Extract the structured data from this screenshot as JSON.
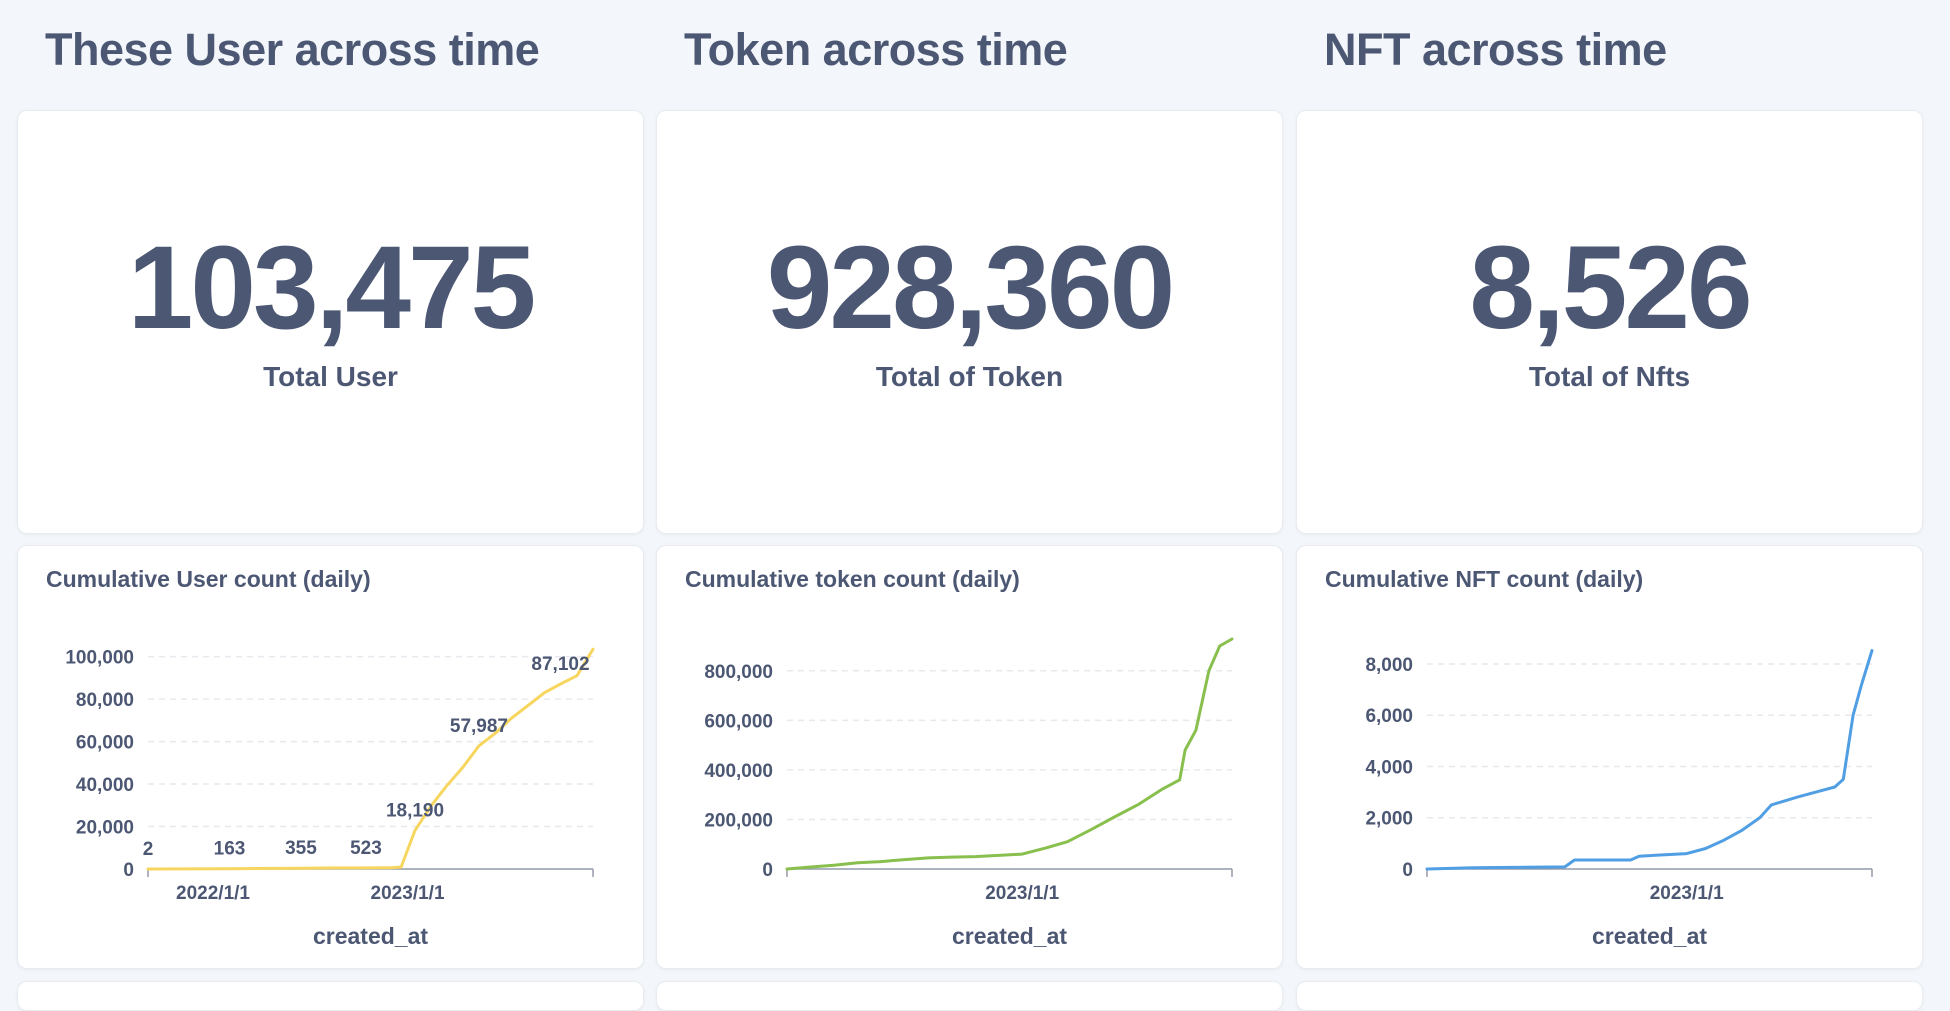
{
  "sections": [
    {
      "title": "These User across time"
    },
    {
      "title": "Token across time"
    },
    {
      "title": "NFT across time"
    }
  ],
  "scalars": [
    {
      "value": "103,475",
      "label": "Total User"
    },
    {
      "value": "928,360",
      "label": "Total of Token"
    },
    {
      "value": "8,526",
      "label": "Total of Nfts"
    }
  ],
  "colors": {
    "user": "#f7d660",
    "token": "#88bf4d",
    "nft": "#509ee3",
    "text": "#4c5773",
    "grid": "#e6e9ee",
    "axis": "#949aab"
  },
  "chart_data": [
    {
      "type": "line",
      "title": "Cumulative User count (daily)",
      "xlabel": "created_at",
      "ylabel": "",
      "color": "#f7d660",
      "x_range": [
        "2021-09-01",
        "2023-12-15"
      ],
      "ylim": [
        0,
        105000
      ],
      "y_ticks": [
        0,
        20000,
        40000,
        60000,
        80000,
        100000
      ],
      "y_tick_labels": [
        "0",
        "20,000",
        "40,000",
        "60,000",
        "80,000",
        "100,000"
      ],
      "x_ticks": [
        "2022-01-01",
        "2023-01-01"
      ],
      "x_tick_labels": [
        "2022/1/1",
        "2023/1/1"
      ],
      "series": [
        {
          "x": [
            "2021-09-01",
            "2021-11-15",
            "2022-02-01",
            "2022-06-15",
            "2022-08-15",
            "2022-10-15",
            "2022-12-01",
            "2022-12-20",
            "2023-01-15",
            "2023-02-15",
            "2023-03-15",
            "2023-04-15",
            "2023-05-15",
            "2023-06-15",
            "2023-07-15",
            "2023-08-15",
            "2023-09-15",
            "2023-10-15",
            "2023-11-15",
            "2023-12-15"
          ],
          "y": [
            2,
            50,
            163,
            355,
            500,
            523,
            600,
            900,
            18190,
            30000,
            39000,
            48000,
            57987,
            64000,
            71000,
            77000,
            83000,
            87102,
            91000,
            103475
          ]
        }
      ],
      "data_labels": [
        {
          "x": "2021-09-01",
          "y": 2,
          "text": "2"
        },
        {
          "x": "2022-02-01",
          "y": 163,
          "text": "163"
        },
        {
          "x": "2022-06-15",
          "y": 355,
          "text": "355"
        },
        {
          "x": "2022-10-15",
          "y": 523,
          "text": "523"
        },
        {
          "x": "2023-01-15",
          "y": 18190,
          "text": "18,190"
        },
        {
          "x": "2023-05-15",
          "y": 57987,
          "text": "57,987"
        },
        {
          "x": "2023-10-15",
          "y": 87102,
          "text": "87,102"
        }
      ],
      "grid": true
    },
    {
      "type": "line",
      "title": "Cumulative token count (daily)",
      "xlabel": "created_at",
      "ylabel": "",
      "color": "#88bf4d",
      "x_range": [
        "2022-03-01",
        "2023-10-01"
      ],
      "ylim": [
        0,
        900000
      ],
      "y_ticks": [
        0,
        200000,
        400000,
        600000,
        800000
      ],
      "y_tick_labels": [
        "0",
        "200,000",
        "400,000",
        "600,000",
        "800,000"
      ],
      "x_ticks": [
        "2023-01-01"
      ],
      "x_tick_labels": [
        "2023/1/1"
      ],
      "series": [
        {
          "x": [
            "2022-03-01",
            "2022-04-01",
            "2022-05-01",
            "2022-06-01",
            "2022-07-01",
            "2022-08-01",
            "2022-09-01",
            "2022-10-01",
            "2022-11-01",
            "2022-12-01",
            "2023-01-01",
            "2023-02-01",
            "2023-03-01",
            "2023-04-01",
            "2023-05-01",
            "2023-06-01",
            "2023-07-01",
            "2023-07-25",
            "2023-08-01",
            "2023-08-15",
            "2023-09-01",
            "2023-09-15",
            "2023-10-01"
          ],
          "y": [
            0,
            8000,
            15000,
            25000,
            30000,
            38000,
            45000,
            48000,
            50000,
            55000,
            60000,
            85000,
            110000,
            160000,
            210000,
            260000,
            320000,
            360000,
            480000,
            560000,
            800000,
            900000,
            928360
          ]
        }
      ],
      "grid": true
    },
    {
      "type": "line",
      "title": "Cumulative NFT count (daily)",
      "xlabel": "created_at",
      "ylabel": "",
      "color": "#509ee3",
      "x_range": [
        "2021-11-01",
        "2023-11-01"
      ],
      "ylim": [
        0,
        8700
      ],
      "y_ticks": [
        0,
        2000,
        4000,
        6000,
        8000
      ],
      "y_tick_labels": [
        "0",
        "2,000",
        "4,000",
        "6,000",
        "8,000"
      ],
      "x_ticks": [
        "2023-01-01"
      ],
      "x_tick_labels": [
        "2023/1/1"
      ],
      "series": [
        {
          "x": [
            "2021-11-01",
            "2022-01-15",
            "2022-06-15",
            "2022-07-01",
            "2022-10-01",
            "2022-10-15",
            "2023-01-01",
            "2023-02-01",
            "2023-03-01",
            "2023-04-01",
            "2023-05-01",
            "2023-05-20",
            "2023-07-01",
            "2023-08-01",
            "2023-09-01",
            "2023-09-15",
            "2023-10-01",
            "2023-10-15",
            "2023-11-01"
          ],
          "y": [
            0,
            50,
            80,
            350,
            350,
            500,
            600,
            800,
            1100,
            1500,
            2000,
            2500,
            2800,
            3000,
            3200,
            3500,
            6000,
            7200,
            8526
          ]
        }
      ],
      "grid": true
    }
  ]
}
